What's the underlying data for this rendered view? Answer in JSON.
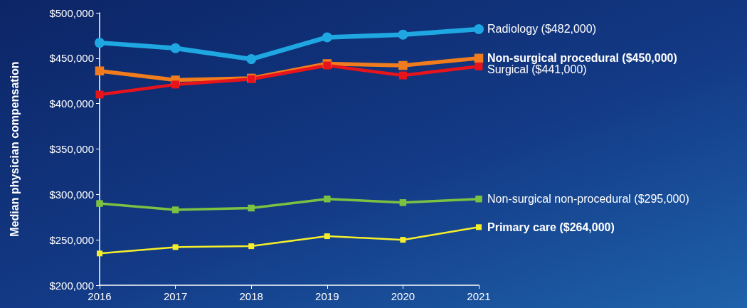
{
  "chart_data": {
    "type": "line",
    "ylabel": "Median physician compensation",
    "categories": [
      "2016",
      "2017",
      "2018",
      "2019",
      "2020",
      "2021"
    ],
    "series": [
      {
        "name": "Radiology ($482,000)",
        "color": "#1ea7e1",
        "marker": "circle",
        "values": [
          467000,
          461000,
          449000,
          473000,
          476000,
          482000
        ]
      },
      {
        "name": "Non-surgical procedural ($450,000)",
        "color": "#f07c1e",
        "marker": "square",
        "values": [
          436000,
          426000,
          428000,
          444000,
          442000,
          450000
        ]
      },
      {
        "name": "Surgical ($441,000)",
        "color": "#e8141c",
        "marker": "square",
        "values": [
          410000,
          421000,
          427000,
          442000,
          431000,
          441000
        ]
      },
      {
        "name": "Non-surgical non-procedural ($295,000)",
        "color": "#7cc242",
        "marker": "square",
        "values": [
          290000,
          283000,
          285000,
          295000,
          291000,
          295000
        ]
      },
      {
        "name": "Primary care ($264,000)",
        "color": "#f5ef2b",
        "marker": "square",
        "values": [
          235000,
          242000,
          243000,
          254000,
          250000,
          264000
        ]
      }
    ],
    "ylim": [
      200000,
      500000
    ],
    "yticks": [
      {
        "value": 200000,
        "label": "$200,000"
      },
      {
        "value": 250000,
        "label": "$250,000"
      },
      {
        "value": 300000,
        "label": "$300,000"
      },
      {
        "value": 350000,
        "label": "$350,000"
      },
      {
        "value": 400000,
        "label": "$400,000"
      },
      {
        "value": 450000,
        "label": "$450,000"
      },
      {
        "value": 500000,
        "label": "$500,000"
      }
    ],
    "grid": false,
    "legend": false,
    "line_style": "solid"
  }
}
